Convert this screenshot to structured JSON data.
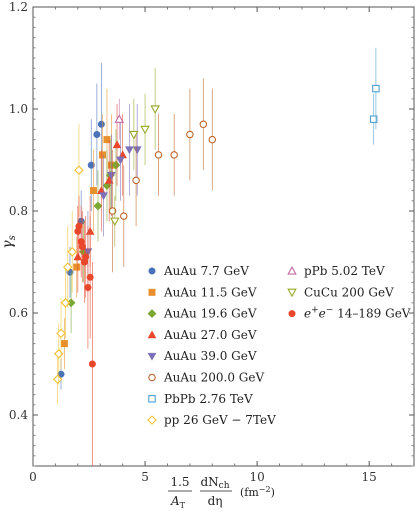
{
  "chart_data": {
    "type": "scatter",
    "xlim": [
      0,
      17
    ],
    "ylim": [
      0.3,
      1.2
    ],
    "xticks": [
      "0",
      "5",
      "10",
      "15"
    ],
    "xtick_values": [
      0,
      5,
      10,
      15
    ],
    "yticks": [
      "0.4",
      "0.6",
      "0.8",
      "1.0",
      "1.2"
    ],
    "ytick_values": [
      0.4,
      0.6,
      0.8,
      1.0,
      1.2
    ],
    "ylabel": "γs",
    "xlabel": {
      "prefix_num": "1.5",
      "prefix_den": "A",
      "prefix_den_sub": "T",
      "frac_num": "dN",
      "frac_num_sub": "ch",
      "frac_den": "dη",
      "unit": "(fm",
      "unit_sup": "−2",
      "unit_end": ")"
    },
    "grid": false,
    "legend_position": "bottom-center",
    "series": [
      {
        "name": "AuAu 7.7 GeV",
        "marker": "circle",
        "fill": true,
        "color": "#4a72b8",
        "points": [
          [
            1.25,
            0.48,
            0.03
          ],
          [
            1.65,
            0.68,
            0.05
          ],
          [
            2.15,
            0.78,
            0.06
          ],
          [
            2.6,
            0.89,
            0.09
          ],
          [
            2.85,
            0.95,
            0.1
          ],
          [
            3.05,
            0.97,
            0.12
          ]
        ]
      },
      {
        "name": "AuAu 11.5 GeV",
        "marker": "square",
        "fill": true,
        "color": "#e8912c",
        "points": [
          [
            1.4,
            0.54,
            0.05
          ],
          [
            1.95,
            0.69,
            0.06
          ],
          [
            2.7,
            0.84,
            0.08
          ],
          [
            3.1,
            0.91,
            0.08
          ],
          [
            3.3,
            0.94,
            0.1
          ],
          [
            3.5,
            0.89,
            0.1
          ]
        ]
      },
      {
        "name": "AuAu 19.6 GeV",
        "marker": "diamond",
        "fill": true,
        "color": "#7ba833",
        "points": [
          [
            1.7,
            0.62,
            0.06
          ],
          [
            2.25,
            0.72,
            0.06
          ],
          [
            2.9,
            0.81,
            0.07
          ],
          [
            3.3,
            0.85,
            0.07
          ],
          [
            3.45,
            0.87,
            0.07
          ],
          [
            3.7,
            0.89,
            0.07
          ]
        ]
      },
      {
        "name": "AuAu 27.0 GeV",
        "marker": "triangle-up",
        "fill": true,
        "color": "#e8472b",
        "points": [
          [
            2.0,
            0.71,
            0.07
          ],
          [
            2.55,
            0.76,
            0.07
          ],
          [
            3.05,
            0.84,
            0.08
          ],
          [
            3.4,
            0.86,
            0.08
          ],
          [
            3.75,
            0.93,
            0.08
          ],
          [
            4.0,
            0.91,
            0.08
          ]
        ]
      },
      {
        "name": "AuAu 39.0 GeV",
        "marker": "triangle-down",
        "fill": true,
        "color": "#7d6fb8",
        "points": [
          [
            2.45,
            0.72,
            0.08
          ],
          [
            3.15,
            0.83,
            0.08
          ],
          [
            3.5,
            0.87,
            0.08
          ],
          [
            3.9,
            0.9,
            0.08
          ],
          [
            4.3,
            0.92,
            0.09
          ],
          [
            4.65,
            0.92,
            0.09
          ]
        ]
      },
      {
        "name": "AuAu 200.0 GeV",
        "marker": "circle",
        "fill": false,
        "color": "#c0652a",
        "points": [
          [
            3.55,
            0.8,
            0.12
          ],
          [
            4.05,
            0.79,
            0.1
          ],
          [
            4.6,
            0.86,
            0.09
          ],
          [
            5.6,
            0.91,
            0.08
          ],
          [
            6.3,
            0.91,
            0.08
          ],
          [
            7.0,
            0.95,
            0.09
          ],
          [
            7.6,
            0.97,
            0.09
          ],
          [
            8.0,
            0.94,
            0.1
          ]
        ]
      },
      {
        "name": "PbPb 2.76 TeV",
        "marker": "square",
        "fill": false,
        "color": "#4d9fd0",
        "points": [
          [
            15.2,
            0.98,
            0.05
          ],
          [
            15.3,
            1.04,
            0.08
          ]
        ]
      },
      {
        "name": "pp 26 GeV −  7TeV",
        "marker": "diamond",
        "fill": false,
        "color": "#f2c233",
        "points": [
          [
            1.1,
            0.47,
            0.05
          ],
          [
            1.15,
            0.52,
            0.06
          ],
          [
            1.25,
            0.56,
            0.07
          ],
          [
            1.45,
            0.62,
            0.07
          ],
          [
            1.55,
            0.69,
            0.08
          ],
          [
            1.75,
            0.72,
            0.08
          ],
          [
            2.05,
            0.88,
            0.09
          ]
        ]
      },
      {
        "name": "pPb 5.02 TeV",
        "marker": "triangle-up",
        "fill": false,
        "color": "#c36aa3",
        "points": [
          [
            3.85,
            0.98,
            0.04
          ]
        ]
      },
      {
        "name": "CuCu 200 GeV",
        "marker": "triangle-down",
        "fill": false,
        "color": "#95a826",
        "points": [
          [
            3.65,
            0.78,
            0.05
          ],
          [
            4.5,
            0.95,
            0.07
          ],
          [
            5.0,
            0.96,
            0.07
          ],
          [
            5.45,
            1.0,
            0.08
          ]
        ]
      },
      {
        "name": "e+e− 14–189 GeV",
        "marker": "circle",
        "fill": true,
        "color": "#e8472b",
        "points": [
          [
            2.0,
            0.76,
            0.05
          ],
          [
            2.05,
            0.77,
            0.06
          ],
          [
            2.15,
            0.74,
            0.07
          ],
          [
            2.2,
            0.73,
            0.07
          ],
          [
            2.3,
            0.7,
            0.08
          ],
          [
            2.35,
            0.71,
            0.08
          ],
          [
            2.45,
            0.65,
            0.12
          ],
          [
            2.55,
            0.67,
            0.12
          ],
          [
            2.65,
            0.5,
            0.2
          ]
        ]
      }
    ]
  },
  "legend": {
    "col1": [
      "AuAu 7.7 GeV",
      "AuAu 11.5 GeV",
      "AuAu 19.6 GeV",
      "AuAu 27.0 GeV",
      "AuAu 39.0 GeV",
      "AuAu 200.0 GeV",
      "PbPb 2.76 TeV",
      "pp 26 GeV −  7TeV"
    ],
    "col2": [
      "pPb 5.02 TeV",
      "CuCu 200 GeV"
    ],
    "col2_ee": {
      "prefix": "e",
      "sup1": "+",
      "mid": "e",
      "sup2": "−",
      "suffix": " 14–189 GeV"
    }
  }
}
